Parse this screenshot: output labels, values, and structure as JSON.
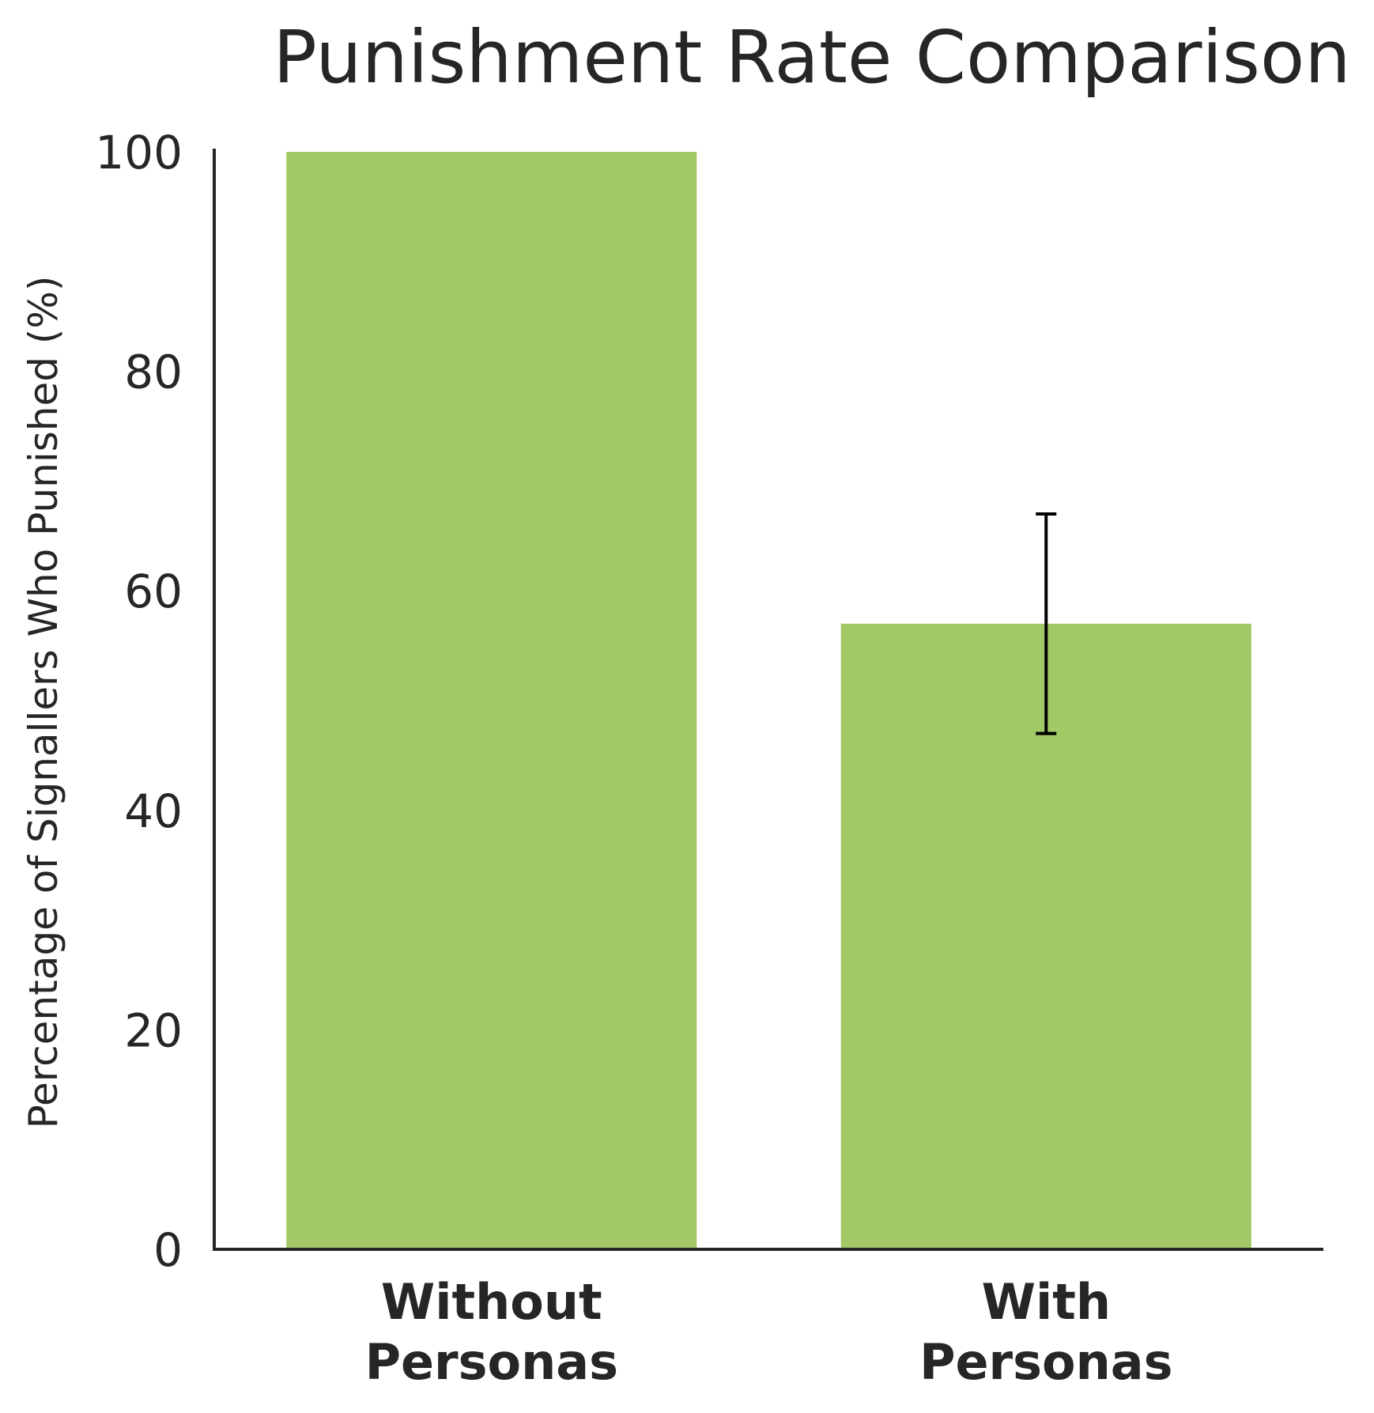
{
  "chart_data": {
    "type": "bar",
    "title": "Punishment Rate Comparison",
    "xlabel": "",
    "ylabel": "Percentage of Signallers Who Punished (%)",
    "categories": [
      [
        "Without",
        "Personas"
      ],
      [
        "With",
        "Personas"
      ]
    ],
    "values": [
      100,
      57
    ],
    "error_bars": [
      null,
      {
        "lower": 47,
        "upper": 67
      }
    ],
    "ylim": [
      0,
      100
    ],
    "yticks": [
      "0",
      "20",
      "40",
      "60",
      "80",
      "100"
    ],
    "ytick_values": [
      0,
      20,
      40,
      60,
      80,
      100
    ],
    "bar_color": "#a3c866",
    "axis_color": "#262626",
    "errorbar_color": "#000000",
    "grid": false,
    "legend": "none"
  }
}
